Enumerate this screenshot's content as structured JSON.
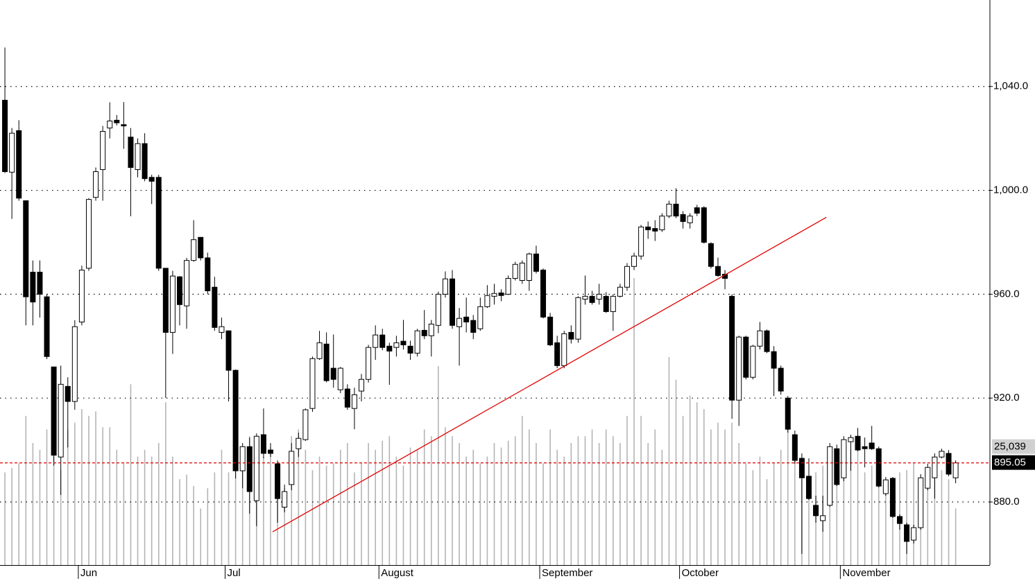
{
  "chart_data": {
    "type": "candlestick",
    "up_color": "#ffffff",
    "down_color": "#000000",
    "volume_color": "#b4b4b4",
    "grid": true,
    "xlim": [
      -0.7,
      140.9
    ],
    "ylim": [
      855.7,
      1073.3
    ],
    "yticks": [
      {
        "value": 880,
        "label": "880.0"
      },
      {
        "value": 920,
        "label": "920.0"
      },
      {
        "value": 960,
        "label": "960.0"
      },
      {
        "value": 1000,
        "label": "1,000.0"
      },
      {
        "value": 1040,
        "label": "1,040.0"
      }
    ],
    "vlim": [
      0,
      250000
    ],
    "month_labels": [
      "Jun",
      "Jul",
      "August",
      "September",
      "October",
      "November"
    ],
    "month_index": [
      11,
      32,
      54,
      77,
      97,
      120
    ],
    "open": [
      1034.7,
      1007,
      1023,
      996,
      968.5,
      968.5,
      959,
      932,
      897.3,
      924.5,
      918.7,
      949.3,
      970,
      997.3,
      1008,
      1024,
      1027,
      1025.3,
      1020.5,
      1008,
      1018,
      1005,
      1005,
      970,
      945.3,
      966.7,
      955.5,
      973,
      981.9,
      974,
      962.7,
      945.3,
      945.9,
      930.7,
      892,
      901.3,
      880.5,
      905.9,
      900,
      894.7,
      878,
      886.7,
      900.5,
      904,
      916,
      935.2,
      940.8,
      931.5,
      923.2,
      923.5,
      916,
      922.7,
      927.2,
      939.5,
      944.3,
      940,
      939.5,
      941.9,
      940,
      937.3,
      946.1,
      944,
      948,
      960,
      965.9,
      947.5,
      951.2,
      949.9,
      946.7,
      955.2,
      959.2,
      960.5,
      960,
      966.1,
      965.3,
      965.3,
      975.5,
      969.3,
      951.2,
      941.3,
      932.5,
      945.3,
      942.7,
      958.1,
      959.2,
      958.1,
      959.2,
      953.3,
      959.2,
      962.7,
      970.7,
      974.7,
      985.9,
      985.3,
      984.8,
      990.1,
      994.7,
      990.7,
      987.5,
      993.3,
      993.3,
      979.5,
      970.7,
      967.7,
      959.2,
      919.2,
      943.5,
      928,
      940,
      945.9,
      937.9,
      931.5,
      920,
      905.9,
      896.8,
      889.9,
      878.7,
      872.8,
      878.7,
      900.5,
      889.3,
      903.2,
      905.3,
      901.3,
      902.7,
      900.5,
      883.2,
      889.1,
      874.4,
      871.2,
      865.3,
      870.1,
      885.3,
      889.3,
      897.3,
      898.7,
      889.3
    ],
    "high": [
      1055,
      1024,
      1027,
      996,
      973,
      973,
      960,
      932,
      932.5,
      928,
      950,
      971,
      997,
      1008.8,
      1024.8,
      1033.9,
      1029,
      1034,
      1024,
      1020,
      1022,
      1006,
      1006,
      970,
      969,
      967,
      974,
      988.5,
      982,
      976,
      966.7,
      951,
      946,
      931,
      902.7,
      904.8,
      906.4,
      916,
      902.7,
      896,
      886.7,
      902.7,
      906.7,
      916,
      936,
      945.9,
      945.3,
      944.5,
      932,
      925.3,
      924,
      929.3,
      940.5,
      948,
      946.7,
      941.3,
      944,
      950.1,
      942.1,
      946.7,
      953.9,
      950.1,
      961,
      968.8,
      969.3,
      954.7,
      958.7,
      952,
      958.7,
      963.5,
      964,
      961.9,
      967.2,
      972.5,
      973,
      976,
      978.7,
      969.9,
      952.8,
      944,
      945.9,
      948,
      959.2,
      967.2,
      961.3,
      964,
      960.8,
      960,
      964,
      972,
      976,
      986.7,
      988,
      988.5,
      991.2,
      996,
      1000.8,
      992,
      991.2,
      994.4,
      993.9,
      980,
      974.1,
      969.3,
      960,
      944,
      944,
      940.5,
      949.3,
      946.4,
      940,
      932.5,
      920.8,
      907.5,
      898.7,
      896.8,
      882.4,
      882.4,
      902.7,
      902.1,
      905.3,
      905.9,
      908.5,
      904.8,
      909.3,
      901.3,
      889.6,
      889.6,
      875.2,
      872,
      871.2,
      890.7,
      894.7,
      898.7,
      900.5,
      900,
      896
    ],
    "low": [
      1006.7,
      989,
      996,
      948,
      948,
      951,
      935,
      894,
      882.7,
      901,
      915.5,
      948,
      969,
      996,
      996,
      1020,
      1025,
      1016,
      990,
      1005,
      1003.5,
      994.7,
      969,
      920,
      937,
      948,
      946.7,
      972.5,
      973,
      960,
      945.9,
      942.7,
      918.7,
      889,
      885.3,
      875.5,
      870.7,
      896.8,
      897.3,
      872,
      876,
      884.5,
      897.3,
      903.5,
      914.7,
      934.7,
      926.1,
      924,
      921.9,
      915.5,
      908,
      918.7,
      926,
      934.7,
      938.4,
      925.1,
      936,
      938.7,
      934.7,
      936,
      942.7,
      936,
      945,
      958.7,
      946.7,
      932.5,
      945.3,
      942.7,
      945.9,
      954.7,
      956,
      957.3,
      959.7,
      965.3,
      964,
      961.3,
      968,
      950.7,
      940,
      931.5,
      931.5,
      941,
      941.3,
      956,
      956,
      956,
      952.8,
      945.9,
      958.7,
      961.3,
      969.3,
      973.3,
      981.3,
      980.5,
      984,
      989.3,
      989.3,
      985.3,
      985.3,
      990.1,
      979.5,
      969.9,
      966.7,
      961.9,
      912,
      909.3,
      927.2,
      927.2,
      938.7,
      937.3,
      920.8,
      921.3,
      906.7,
      894.7,
      860,
      880.8,
      872,
      868.5,
      878.1,
      886.1,
      888,
      892,
      899.5,
      893.3,
      900,
      885.6,
      882.4,
      873.9,
      869.3,
      860,
      864,
      869.3,
      884.5,
      881.3,
      896.8,
      889.9,
      887.2
    ],
    "close": [
      1007.2,
      1022,
      997,
      959,
      957,
      960,
      936,
      898,
      925.3,
      918.7,
      947.5,
      969.3,
      996.5,
      1007.2,
      1022.7,
      1026.7,
      1026,
      1024.8,
      1008.8,
      1018,
      1004.5,
      1003.5,
      970,
      945.3,
      967,
      956,
      973,
      981,
      974,
      961.3,
      947.2,
      947.5,
      930.7,
      892,
      901.3,
      884,
      905.3,
      898.7,
      898.7,
      881.3,
      884,
      899.5,
      904.5,
      915.5,
      935.2,
      941.3,
      926.7,
      927.2,
      931.5,
      916.5,
      921.3,
      927.2,
      939.5,
      944.3,
      939.5,
      938.1,
      941.3,
      940.5,
      937.3,
      945.9,
      944,
      948.5,
      960,
      965.9,
      948,
      950.7,
      949.3,
      945.3,
      955.2,
      959.5,
      960.3,
      959.5,
      966.1,
      971.5,
      972,
      975.5,
      968.8,
      951.2,
      940.5,
      932.5,
      944.8,
      942.7,
      958.7,
      959.2,
      956.8,
      960,
      953.3,
      959.2,
      962.7,
      970.7,
      974.7,
      985.9,
      984.8,
      984.3,
      990.1,
      994.7,
      990.1,
      988,
      990.1,
      991.2,
      980,
      970.7,
      967.2,
      966.1,
      919.2,
      943.5,
      928,
      940,
      945.9,
      937.9,
      931.5,
      922.7,
      908,
      896,
      889.3,
      881.3,
      874.7,
      874.7,
      901.3,
      886.7,
      904,
      904.8,
      900,
      900.5,
      900.5,
      886.1,
      888.5,
      874.4,
      871.7,
      864.8,
      870.1,
      889.3,
      893.3,
      897.3,
      899.5,
      890.7,
      895.05
    ],
    "volume": [
      41000,
      43000,
      45000,
      66000,
      54000,
      51000,
      60000,
      48000,
      42000,
      60000,
      63000,
      69000,
      66000,
      68000,
      61000,
      61000,
      51000,
      45000,
      80000,
      48000,
      51000,
      48000,
      54000,
      72000,
      48000,
      38000,
      40000,
      35000,
      25000,
      34000,
      41000,
      51000,
      41000,
      54000,
      48000,
      57000,
      41000,
      48000,
      52000,
      44000,
      34000,
      57000,
      60000,
      51000,
      42000,
      48000,
      44000,
      45000,
      51000,
      54000,
      41000,
      45000,
      54000,
      51000,
      55000,
      57000,
      48000,
      44000,
      52000,
      51000,
      60000,
      57000,
      88000,
      61000,
      57000,
      54000,
      48000,
      51000,
      45000,
      48000,
      54000,
      52000,
      55000,
      57000,
      66000,
      60000,
      54000,
      45000,
      60000,
      51000,
      48000,
      54000,
      57000,
      57000,
      60000,
      54000,
      60000,
      57000,
      54000,
      66000,
      127000,
      66000,
      54000,
      60000,
      51000,
      92000,
      82000,
      66000,
      75000,
      72000,
      69000,
      60000,
      63000,
      60000,
      63000,
      54000,
      45000,
      42000,
      48000,
      38000,
      45000,
      51000,
      60000,
      48000,
      38000,
      35000,
      41000,
      44000,
      48000,
      38000,
      45000,
      51000,
      54000,
      41000,
      44000,
      48000,
      38000,
      35000,
      41000,
      42000,
      45000,
      38000,
      41000,
      45000,
      42000,
      38000,
      25039
    ],
    "trendline": {
      "x": [
        38.3,
        117.5
      ],
      "y": [
        868.5,
        989.6
      ],
      "color": "#e00000"
    },
    "last_price": 895.05,
    "last_price_color": "#e00000",
    "last_volume": {
      "value": 25039,
      "label": "25,039"
    }
  }
}
